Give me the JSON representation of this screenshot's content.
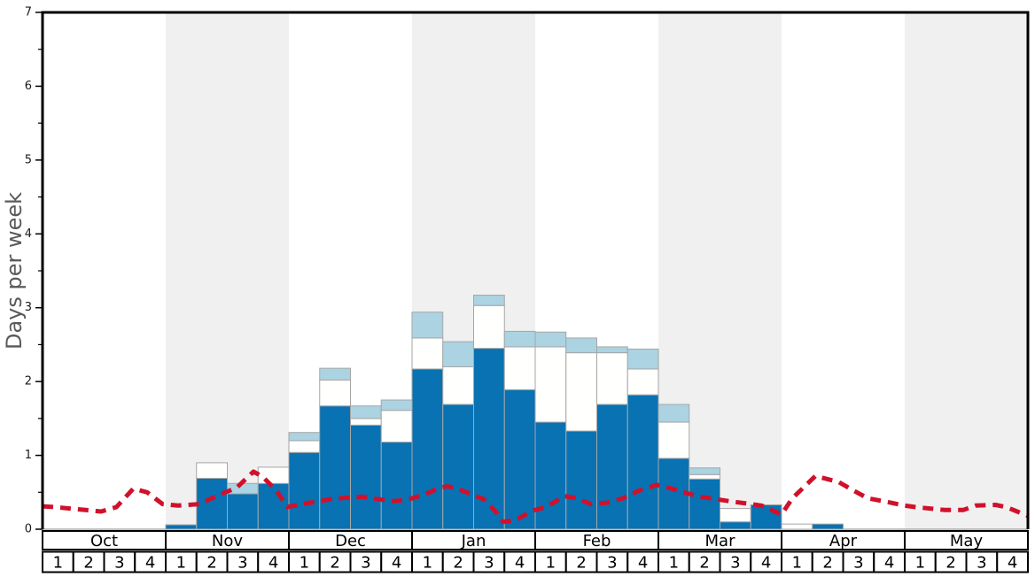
{
  "chart_data": {
    "type": "bar",
    "title": "",
    "ylabel": "Days per week",
    "xlabel": "",
    "ylim": [
      0,
      7
    ],
    "yticks": [
      0,
      1,
      2,
      3,
      4,
      5,
      6,
      7
    ],
    "y_minor_step": 0.5,
    "grid": false,
    "legend": "none",
    "months": [
      "Oct",
      "Nov",
      "Dec",
      "Jan",
      "Feb",
      "Mar",
      "Apr",
      "May"
    ],
    "week_labels": [
      "1",
      "2",
      "3",
      "4"
    ],
    "weeks_total": 32,
    "series": [
      {
        "name": "dark_blue_days",
        "color": "#0872b3",
        "values": [
          0,
          0,
          0,
          0,
          0.06,
          0.69,
          0.48,
          0.62,
          1.04,
          1.67,
          1.41,
          1.18,
          2.17,
          1.69,
          2.45,
          1.89,
          1.45,
          1.33,
          1.69,
          1.82,
          0.96,
          0.68,
          0.1,
          0.33,
          0,
          0.07,
          0,
          0,
          0,
          0,
          0,
          0
        ]
      },
      {
        "name": "white_days",
        "color": "#fffffd",
        "values": [
          0,
          0,
          0,
          0,
          0,
          0.21,
          0,
          0.22,
          0.16,
          0.35,
          0.09,
          0.43,
          0.42,
          0.51,
          0.58,
          0.58,
          1.02,
          1.06,
          0.7,
          0.35,
          0.49,
          0.06,
          0.18,
          0,
          0.07,
          0,
          0,
          0,
          0,
          0,
          0,
          0
        ]
      },
      {
        "name": "light_blue_days",
        "color": "#abd3e2",
        "values": [
          0,
          0,
          0,
          0,
          0,
          0,
          0.14,
          0,
          0.11,
          0.16,
          0.17,
          0.14,
          0.35,
          0.34,
          0.14,
          0.21,
          0.2,
          0.2,
          0.08,
          0.27,
          0.24,
          0.09,
          0,
          0,
          0,
          0,
          0,
          0,
          0,
          0,
          0,
          0
        ]
      }
    ],
    "line": {
      "name": "red_dashed_line",
      "color": "#d0112b",
      "dash": [
        12,
        8
      ],
      "points": [
        [
          0,
          0.31
        ],
        [
          0.4,
          0.3
        ],
        [
          1.4,
          0.26
        ],
        [
          1.9,
          0.24
        ],
        [
          2.4,
          0.3
        ],
        [
          2.95,
          0.55
        ],
        [
          3.4,
          0.5
        ],
        [
          3.9,
          0.34
        ],
        [
          4.4,
          0.32
        ],
        [
          5.1,
          0.34
        ],
        [
          5.7,
          0.46
        ],
        [
          6.3,
          0.56
        ],
        [
          6.85,
          0.78
        ],
        [
          7.15,
          0.71
        ],
        [
          7.6,
          0.52
        ],
        [
          7.95,
          0.3
        ],
        [
          8.4,
          0.34
        ],
        [
          9.0,
          0.38
        ],
        [
          9.4,
          0.41
        ],
        [
          10.0,
          0.43
        ],
        [
          10.4,
          0.44
        ],
        [
          10.85,
          0.41
        ],
        [
          11.4,
          0.38
        ],
        [
          11.85,
          0.4
        ],
        [
          12.4,
          0.47
        ],
        [
          12.9,
          0.56
        ],
        [
          13.15,
          0.58
        ],
        [
          13.4,
          0.56
        ],
        [
          13.9,
          0.48
        ],
        [
          14.35,
          0.4
        ],
        [
          14.75,
          0.22
        ],
        [
          14.95,
          0.1
        ],
        [
          15.4,
          0.13
        ],
        [
          15.9,
          0.25
        ],
        [
          16.35,
          0.3
        ],
        [
          16.95,
          0.45
        ],
        [
          17.35,
          0.42
        ],
        [
          17.8,
          0.34
        ],
        [
          18.35,
          0.36
        ],
        [
          18.85,
          0.42
        ],
        [
          19.35,
          0.52
        ],
        [
          19.95,
          0.6
        ],
        [
          20.35,
          0.56
        ],
        [
          21.0,
          0.48
        ],
        [
          21.35,
          0.44
        ],
        [
          22.3,
          0.38
        ],
        [
          23.0,
          0.34
        ],
        [
          23.35,
          0.32
        ],
        [
          24.0,
          0.2
        ],
        [
          24.35,
          0.42
        ],
        [
          25.1,
          0.72
        ],
        [
          25.85,
          0.64
        ],
        [
          26.35,
          0.52
        ],
        [
          26.8,
          0.42
        ],
        [
          27.3,
          0.38
        ],
        [
          28.0,
          0.32
        ],
        [
          28.35,
          0.3
        ],
        [
          29.3,
          0.26
        ],
        [
          29.9,
          0.26
        ],
        [
          30.3,
          0.32
        ],
        [
          30.95,
          0.33
        ],
        [
          31.3,
          0.3
        ],
        [
          32.0,
          0.18
        ]
      ]
    },
    "colors": {
      "month_band_alt": "#f0f0f0",
      "bar_border": "#a6a6a6",
      "frame": "#000000",
      "baseline": "#aaaaaa",
      "tick_text": "#1a1a1a",
      "ylabel_text": "#595959",
      "table_border": "#000000",
      "table_text": "#000000",
      "table_fill": "#ffffff"
    }
  }
}
